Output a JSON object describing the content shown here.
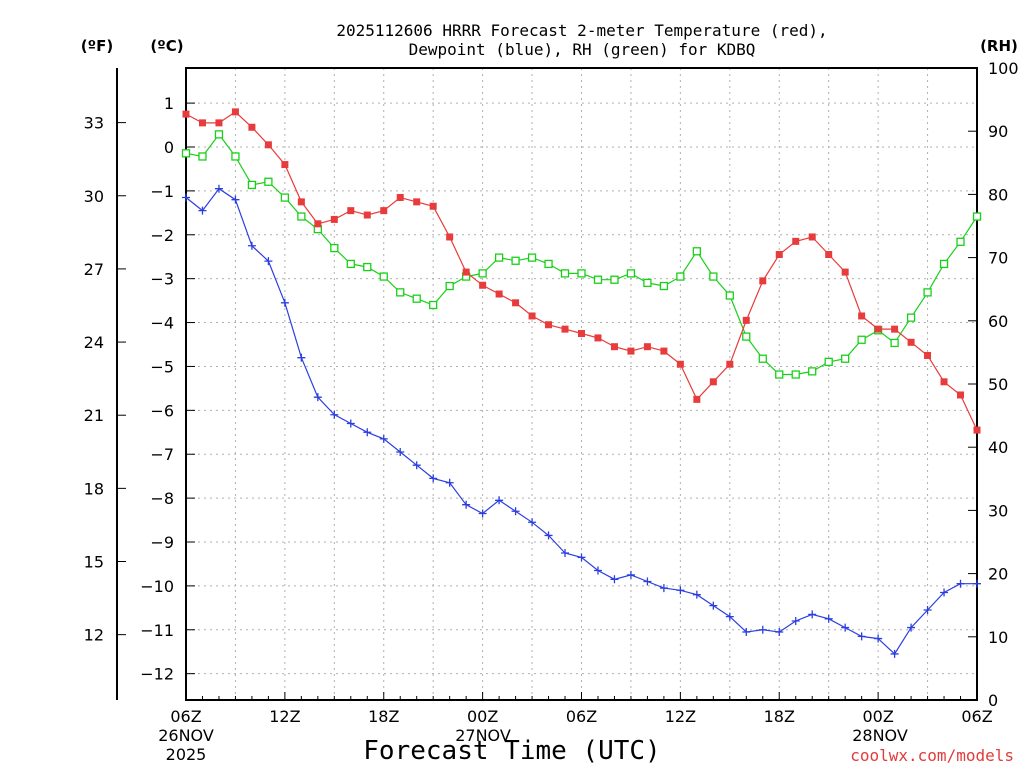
{
  "chart_data": {
    "type": "line",
    "title_line1": "2025112606 HRRR Forecast 2-meter Temperature (red),",
    "title_line2": "Dewpoint (blue), RH (green) for KDBQ",
    "xlabel": "Forecast Time (UTC)",
    "credit": "coolwx.com/models",
    "units": {
      "fahrenheit": "(ºF)",
      "celsius": "(ºC)",
      "rh": "(RH)"
    },
    "x_ticks": [
      "06Z",
      "12Z",
      "18Z",
      "00Z",
      "06Z",
      "12Z",
      "18Z",
      "00Z",
      "06Z"
    ],
    "date_labels": [
      "26NOV",
      "2025",
      "27NOV",
      "28NOV"
    ],
    "celsius_ticks": [
      "1",
      "0",
      "−1",
      "−2",
      "−3",
      "−4",
      "−5",
      "−6",
      "−7",
      "−8",
      "−9",
      "−10",
      "−11",
      "−12"
    ],
    "fahrenheit_ticks": [
      "33",
      "30",
      "27",
      "24",
      "21",
      "18",
      "15",
      "12"
    ],
    "rh_ticks": [
      "100",
      "90",
      "80",
      "70",
      "60",
      "50",
      "40",
      "30",
      "20",
      "10",
      "0"
    ],
    "xlim_hours": [
      0,
      48
    ],
    "celsius_range": [
      -12.6,
      1.8
    ],
    "rh_range": [
      0,
      100
    ],
    "colors": {
      "temperature": "#e83b3b",
      "dewpoint": "#2b3fe0",
      "rh": "#19d019",
      "grid": "#b0b0b0"
    },
    "series": [
      {
        "name": "Temperature (°C)",
        "values": [
          0.75,
          0.55,
          0.55,
          0.8,
          0.45,
          0.05,
          -0.4,
          -1.25,
          -1.75,
          -1.65,
          -1.45,
          -1.55,
          -1.45,
          -1.15,
          -1.25,
          -1.35,
          -2.05,
          -2.85,
          -3.15,
          -3.35,
          -3.55,
          -3.85,
          -4.05,
          -4.15,
          -4.25,
          -4.35,
          -4.55,
          -4.65,
          -4.55,
          -4.65,
          -4.95,
          -5.75,
          -5.35,
          -4.95,
          -3.95,
          -3.05,
          -2.45,
          -2.15,
          -2.05,
          -2.45,
          -2.85,
          -3.85,
          -4.15,
          -4.15,
          -4.45,
          -4.75,
          -5.35,
          -5.65,
          -6.45
        ]
      },
      {
        "name": "Dewpoint (°C)",
        "values": [
          -1.15,
          -1.45,
          -0.95,
          -1.2,
          -2.25,
          -2.6,
          -3.55,
          -4.8,
          -5.7,
          -6.1,
          -6.3,
          -6.5,
          -6.65,
          -6.95,
          -7.25,
          -7.55,
          -7.65,
          -8.15,
          -8.35,
          -8.05,
          -8.3,
          -8.55,
          -8.85,
          -9.25,
          -9.35,
          -9.65,
          -9.85,
          -9.75,
          -9.9,
          -10.05,
          -10.1,
          -10.2,
          -10.45,
          -10.7,
          -11.05,
          -11.0,
          -11.05,
          -10.8,
          -10.65,
          -10.75,
          -10.95,
          -11.15,
          -11.2,
          -11.55,
          -10.95,
          -10.55,
          -10.15,
          -9.95,
          -9.95
        ]
      },
      {
        "name": "RH (%)",
        "values": [
          86.5,
          86,
          89.5,
          86,
          81.5,
          82,
          79.5,
          76.5,
          74.5,
          71.5,
          69,
          68.5,
          67,
          64.5,
          63.5,
          62.5,
          65.5,
          67,
          67.5,
          70,
          69.5,
          70,
          69,
          67.5,
          67.5,
          66.5,
          66.5,
          67.5,
          66,
          65.5,
          67,
          71,
          67,
          64,
          57.5,
          54,
          51.5,
          51.5,
          52,
          53.5,
          54,
          57,
          58.5,
          56.5,
          60.5,
          64.5,
          69,
          72.5,
          76.5
        ]
      }
    ]
  }
}
